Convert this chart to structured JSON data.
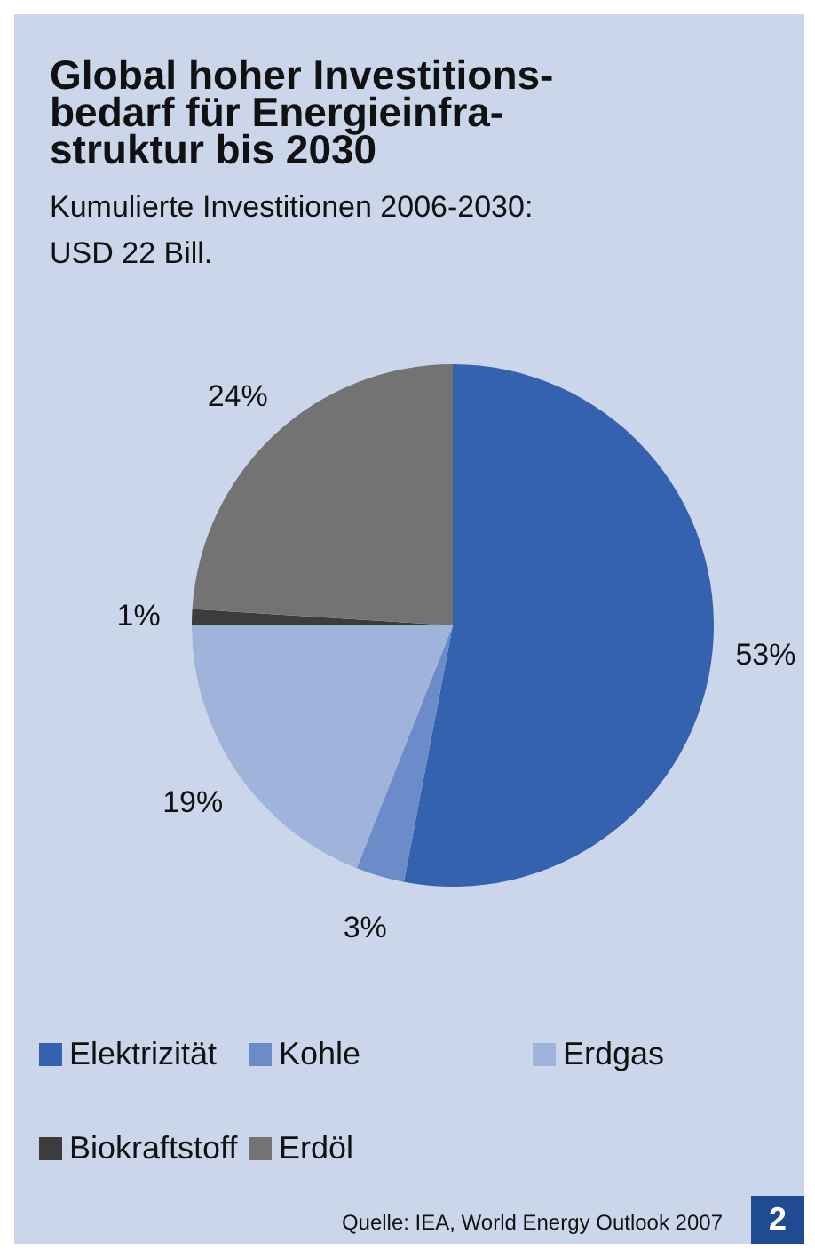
{
  "chart_data": {
    "type": "pie",
    "title": "Global hoher Investitions-\nbedarf für Energieinfra-\nstruktur bis 2030",
    "subtitle": "Kumulierte Investitionen 2006-2030:\nUSD 22 Bill.",
    "categories": [
      "Elektrizität",
      "Kohle",
      "Erdgas",
      "Biokraftstoff",
      "Erdöl"
    ],
    "values": [
      53,
      3,
      19,
      1,
      24
    ],
    "value_labels": [
      "53%",
      "3%",
      "19%",
      "1%",
      "24%"
    ],
    "colors": [
      "#3462ae",
      "#6b8cc9",
      "#a0b3da",
      "#3c3c3c",
      "#737373"
    ],
    "legend": "bottom",
    "annotations": [
      "Quelle: IEA, World Energy Outlook 2007",
      "2"
    ]
  }
}
